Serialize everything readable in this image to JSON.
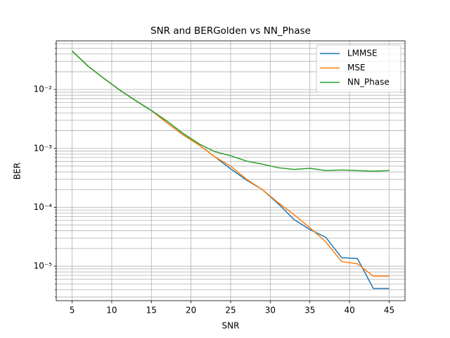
{
  "chart_data": {
    "type": "line",
    "title": "SNR and BERGolden vs NN_Phase",
    "x_label": "SNR",
    "y_label": "BER",
    "x": [
      5,
      7,
      9,
      11,
      13,
      15,
      17,
      19,
      21,
      23,
      25,
      27,
      29,
      31,
      33,
      35,
      37,
      39,
      41,
      43,
      45
    ],
    "series": [
      {
        "name": "LMMSE",
        "color": "#1f77b4",
        "values": [
          0.045,
          0.025,
          0.0155,
          0.0098,
          0.0065,
          0.0044,
          0.0027,
          0.0017,
          0.00115,
          0.00072,
          0.00045,
          0.00029,
          0.0002,
          0.000115,
          6.2e-05,
          4.2e-05,
          3.1e-05,
          1.4e-05,
          1.35e-05,
          4.2e-06,
          4.2e-06
        ]
      },
      {
        "name": "MSE",
        "color": "#ff7f0e",
        "values": [
          0.045,
          0.025,
          0.0155,
          0.0098,
          0.0065,
          0.0044,
          0.0027,
          0.0017,
          0.00115,
          0.00072,
          0.0005,
          0.0003,
          0.0002,
          0.00012,
          7.5e-05,
          4.5e-05,
          2.6e-05,
          1.2e-05,
          1.1e-05,
          6.8e-06,
          6.8e-06
        ]
      },
      {
        "name": "NN_Phase",
        "color": "#2ca02c",
        "values": [
          0.045,
          0.025,
          0.0155,
          0.0098,
          0.0065,
          0.0044,
          0.0029,
          0.0018,
          0.0012,
          0.00088,
          0.00075,
          0.00061,
          0.00054,
          0.00047,
          0.00044,
          0.00046,
          0.00042,
          0.00043,
          0.00042,
          0.00041,
          0.00042
        ]
      }
    ],
    "xlim": [
      3,
      47
    ],
    "xticks": [
      5,
      10,
      15,
      20,
      25,
      30,
      35,
      40,
      45
    ],
    "ylim": [
      2.6e-06,
      0.067
    ],
    "y_log": true,
    "yticks": [
      {
        "value": 1e-05,
        "label": "10⁻⁵"
      },
      {
        "value": 0.0001,
        "label": "10⁻⁴"
      },
      {
        "value": 0.001,
        "label": "10⁻³"
      },
      {
        "value": 0.01,
        "label": "10⁻²"
      }
    ],
    "yminorticks": [
      3e-06,
      4e-06,
      5e-06,
      6e-06,
      7e-06,
      8e-06,
      9e-06,
      2e-05,
      3e-05,
      4e-05,
      5e-05,
      6e-05,
      7e-05,
      8e-05,
      9e-05,
      0.0002,
      0.0003,
      0.0004,
      0.0005,
      0.0006,
      0.0007,
      0.0008,
      0.0009,
      0.002,
      0.003,
      0.004,
      0.005,
      0.006,
      0.007,
      0.008,
      0.009,
      0.02,
      0.03,
      0.04,
      0.05,
      0.06
    ],
    "grid": true,
    "legend": "upper right"
  }
}
